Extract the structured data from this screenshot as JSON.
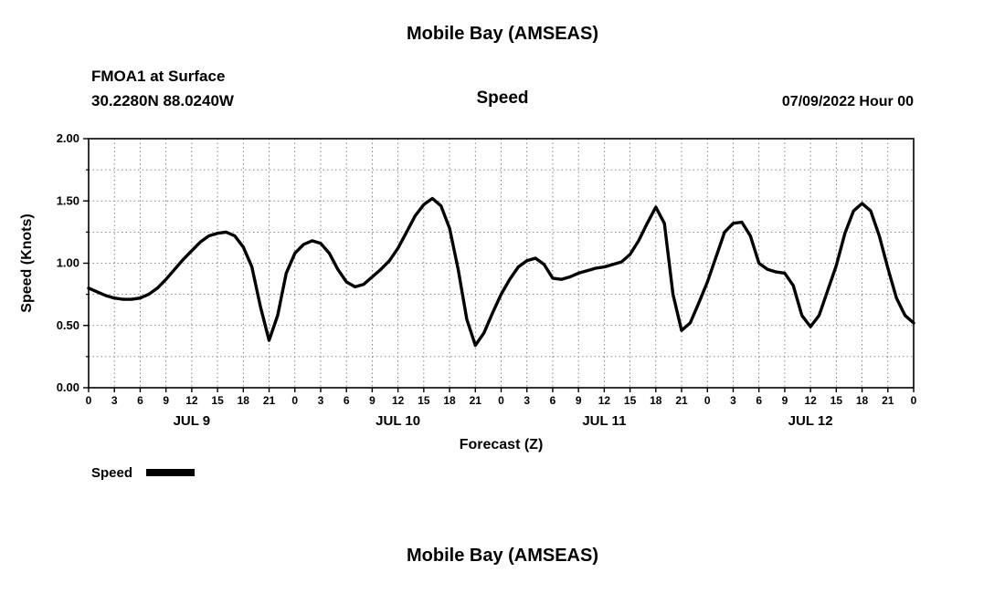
{
  "page": {
    "top_title": "Mobile Bay (AMSEAS)",
    "bottom_title": "Mobile Bay (AMSEAS)"
  },
  "header": {
    "station": "FMOA1 at Surface",
    "coordinates": "30.2280N  88.0240W",
    "run_time": "07/09/2022 Hour 00"
  },
  "chart_data": {
    "type": "line",
    "title": "Speed",
    "xlabel": "Forecast (Z)",
    "ylabel": "Speed (Knots)",
    "xlim": [
      0,
      96
    ],
    "ylim": [
      0,
      2
    ],
    "grid": "dashed",
    "line_color": "#000000",
    "y_major_ticks": [
      0,
      0.5,
      1.0,
      1.5,
      2.0
    ],
    "y_tick_labels": [
      "0.00",
      "0.50",
      "1.00",
      "1.50",
      "2.00"
    ],
    "y_minor_step": 0.25,
    "x_tick_step": 3,
    "x_tick_labels": [
      "0",
      "3",
      "6",
      "9",
      "12",
      "15",
      "18",
      "21",
      "0",
      "3",
      "6",
      "9",
      "12",
      "15",
      "18",
      "21",
      "0",
      "3",
      "6",
      "9",
      "12",
      "15",
      "18",
      "21",
      "0",
      "3",
      "6",
      "9",
      "12",
      "15",
      "18",
      "21",
      "0"
    ],
    "day_labels": [
      {
        "label": "JUL 9",
        "hour": 12
      },
      {
        "label": "JUL 10",
        "hour": 36
      },
      {
        "label": "JUL 11",
        "hour": 60
      },
      {
        "label": "JUL 12",
        "hour": 84
      }
    ],
    "legend": [
      {
        "label": "Speed",
        "color": "#000000"
      }
    ],
    "series": [
      {
        "name": "Speed",
        "points": [
          [
            0,
            0.8
          ],
          [
            1,
            0.77
          ],
          [
            2,
            0.74
          ],
          [
            3,
            0.72
          ],
          [
            4,
            0.71
          ],
          [
            5,
            0.71
          ],
          [
            6,
            0.72
          ],
          [
            7,
            0.75
          ],
          [
            8,
            0.8
          ],
          [
            9,
            0.87
          ],
          [
            10,
            0.95
          ],
          [
            11,
            1.03
          ],
          [
            12,
            1.1
          ],
          [
            13,
            1.17
          ],
          [
            14,
            1.22
          ],
          [
            15,
            1.24
          ],
          [
            16,
            1.25
          ],
          [
            17,
            1.22
          ],
          [
            18,
            1.13
          ],
          [
            19,
            0.97
          ],
          [
            20,
            0.65
          ],
          [
            21,
            0.38
          ],
          [
            22,
            0.58
          ],
          [
            23,
            0.92
          ],
          [
            24,
            1.08
          ],
          [
            25,
            1.15
          ],
          [
            26,
            1.18
          ],
          [
            27,
            1.16
          ],
          [
            28,
            1.08
          ],
          [
            29,
            0.95
          ],
          [
            30,
            0.85
          ],
          [
            31,
            0.81
          ],
          [
            32,
            0.83
          ],
          [
            33,
            0.89
          ],
          [
            34,
            0.95
          ],
          [
            35,
            1.02
          ],
          [
            36,
            1.12
          ],
          [
            37,
            1.25
          ],
          [
            38,
            1.38
          ],
          [
            39,
            1.47
          ],
          [
            40,
            1.52
          ],
          [
            41,
            1.46
          ],
          [
            42,
            1.28
          ],
          [
            43,
            0.95
          ],
          [
            44,
            0.55
          ],
          [
            45,
            0.34
          ],
          [
            46,
            0.44
          ],
          [
            47,
            0.6
          ],
          [
            48,
            0.75
          ],
          [
            49,
            0.87
          ],
          [
            50,
            0.97
          ],
          [
            51,
            1.02
          ],
          [
            52,
            1.04
          ],
          [
            53,
            0.99
          ],
          [
            54,
            0.88
          ],
          [
            55,
            0.87
          ],
          [
            56,
            0.89
          ],
          [
            57,
            0.92
          ],
          [
            58,
            0.94
          ],
          [
            59,
            0.96
          ],
          [
            60,
            0.97
          ],
          [
            61,
            0.99
          ],
          [
            62,
            1.01
          ],
          [
            63,
            1.07
          ],
          [
            64,
            1.18
          ],
          [
            65,
            1.32
          ],
          [
            66,
            1.45
          ],
          [
            67,
            1.32
          ],
          [
            68,
            0.75
          ],
          [
            69,
            0.46
          ],
          [
            70,
            0.52
          ],
          [
            71,
            0.68
          ],
          [
            72,
            0.85
          ],
          [
            73,
            1.05
          ],
          [
            74,
            1.25
          ],
          [
            75,
            1.32
          ],
          [
            76,
            1.33
          ],
          [
            77,
            1.22
          ],
          [
            78,
            1.0
          ],
          [
            79,
            0.95
          ],
          [
            80,
            0.93
          ],
          [
            81,
            0.92
          ],
          [
            82,
            0.82
          ],
          [
            83,
            0.58
          ],
          [
            84,
            0.49
          ],
          [
            85,
            0.58
          ],
          [
            86,
            0.78
          ],
          [
            87,
            0.98
          ],
          [
            88,
            1.24
          ],
          [
            89,
            1.42
          ],
          [
            90,
            1.48
          ],
          [
            91,
            1.42
          ],
          [
            92,
            1.22
          ],
          [
            93,
            0.96
          ],
          [
            94,
            0.72
          ],
          [
            95,
            0.58
          ],
          [
            96,
            0.52
          ]
        ]
      }
    ]
  }
}
